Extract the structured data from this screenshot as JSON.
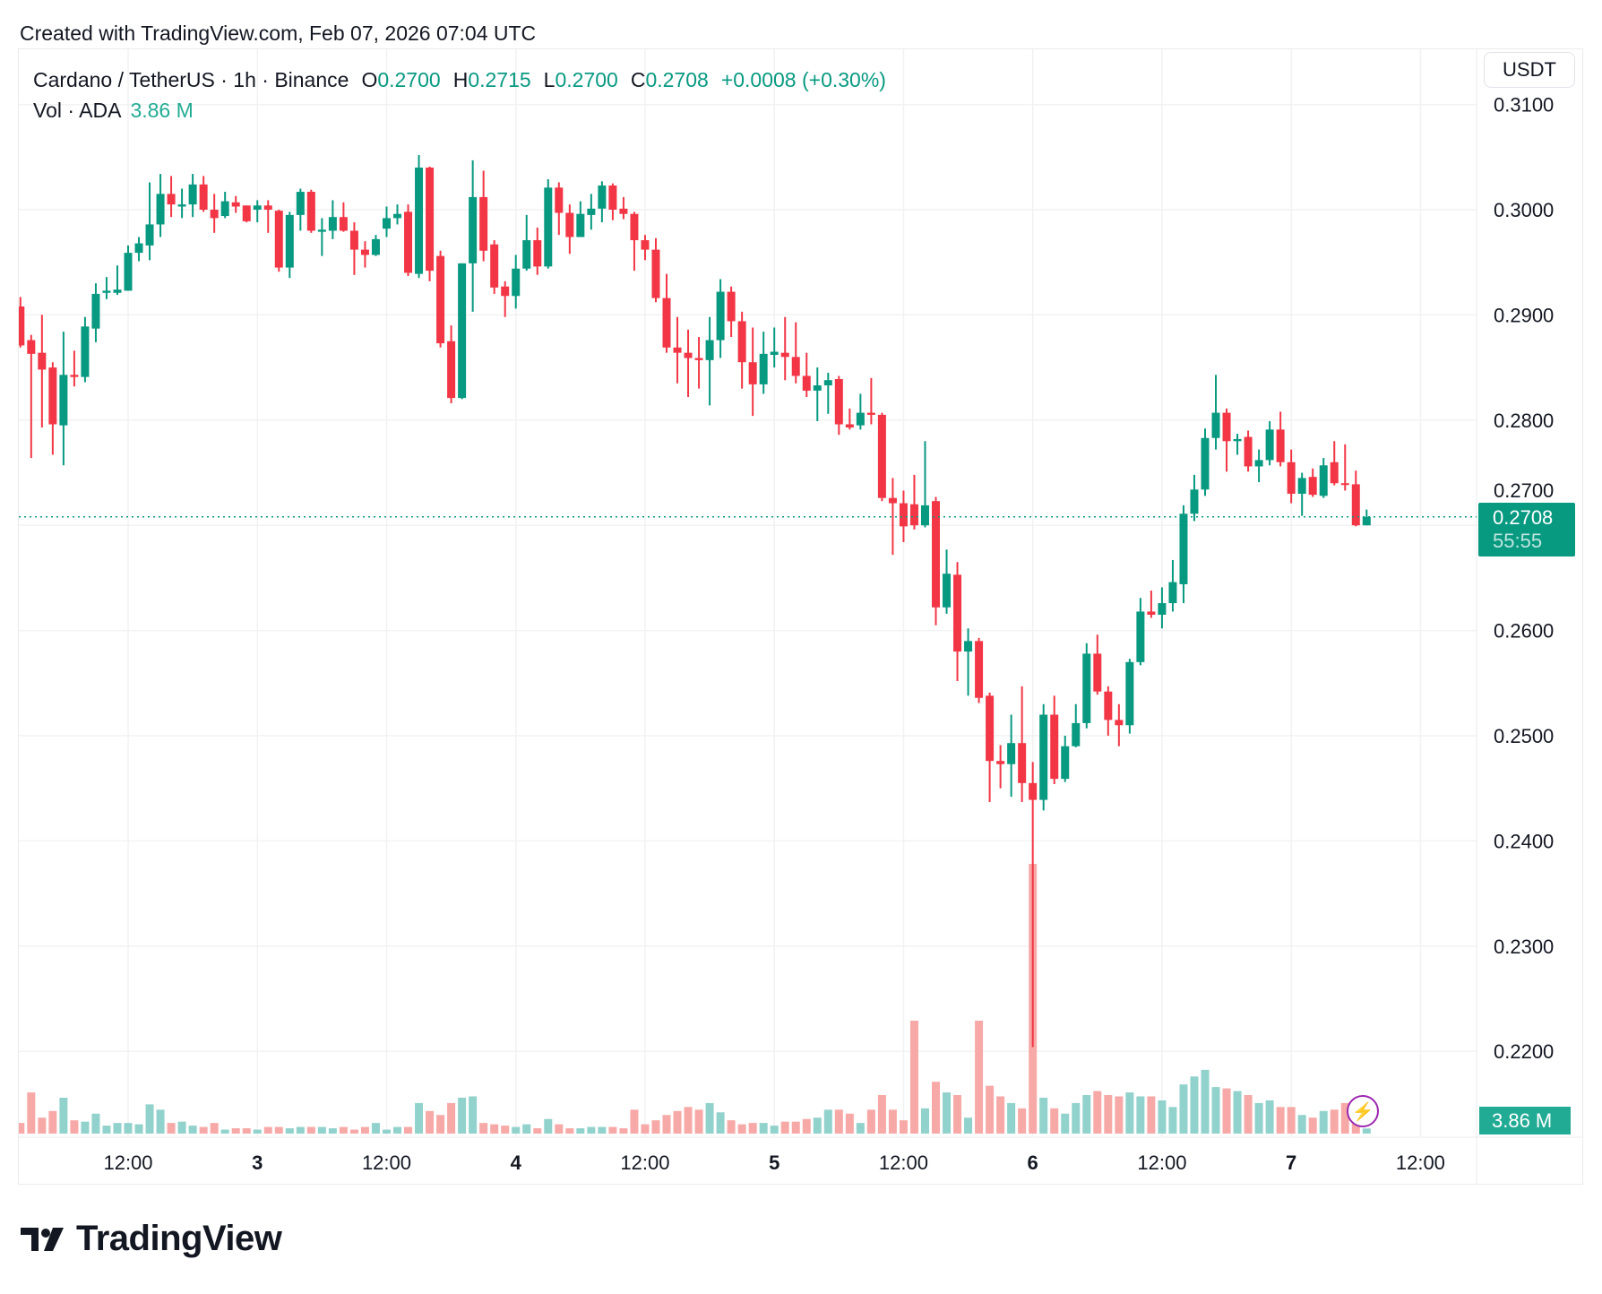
{
  "header": {
    "created": "Created with TradingView.com, Feb 07, 2026 07:04 UTC"
  },
  "legend": {
    "symbol": "Cardano / TetherUS · 1h · Binance",
    "o_label": "O",
    "o": "0.2700",
    "h_label": "H",
    "h": "0.2715",
    "l_label": "L",
    "l": "0.2700",
    "c_label": "C",
    "c": "0.2708",
    "change": "+0.0008 (+0.30%)",
    "vol_label": "Vol · ADA",
    "vol_value": "3.86 M"
  },
  "currency_button": "USDT",
  "last_price": {
    "price": "0.2708",
    "countdown": "55:55"
  },
  "last_volume": "3.86 M",
  "logo_text": "TradingView",
  "colors": {
    "up": "#089981",
    "down": "#F23645",
    "vol_up": "#92d2cc",
    "vol_down": "#f7a9a7",
    "grid": "#f2f2f2"
  },
  "chart_data": {
    "type": "candlestick",
    "title": "Cardano / TetherUS · 1h · Binance",
    "start": "Feb 2 02:00",
    "interval": "1h",
    "ylim": [
      0.213,
      0.3165
    ],
    "y_ticks": [
      "0.2200",
      "0.2300",
      "0.2400",
      "0.2500",
      "0.2600",
      "0.2700",
      "0.2800",
      "0.2900",
      "0.3000",
      "0.3100"
    ],
    "x_ticks": [
      {
        "label": "12:00",
        "hour": 10
      },
      {
        "label": "3",
        "hour": 22
      },
      {
        "label": "12:00",
        "hour": 34
      },
      {
        "label": "4",
        "hour": 46
      },
      {
        "label": "12:00",
        "hour": 58
      },
      {
        "label": "5",
        "hour": 70
      },
      {
        "label": "12:00",
        "hour": 82
      },
      {
        "label": "6",
        "hour": 94
      },
      {
        "label": "12:00",
        "hour": 106
      },
      {
        "label": "7",
        "hour": 118
      },
      {
        "label": "12:00",
        "hour": 130
      }
    ],
    "ohlc_fields": [
      "open",
      "high",
      "low",
      "close"
    ],
    "candles": [
      [
        0.2908,
        0.2917,
        0.2869,
        0.2871
      ],
      [
        0.2876,
        0.2881,
        0.2764,
        0.2863
      ],
      [
        0.2864,
        0.29,
        0.2793,
        0.2848
      ],
      [
        0.285,
        0.2855,
        0.2767,
        0.2796
      ],
      [
        0.2795,
        0.2884,
        0.2757,
        0.2843
      ],
      [
        0.2843,
        0.2866,
        0.2832,
        0.2841
      ],
      [
        0.2841,
        0.2898,
        0.2836,
        0.2889
      ],
      [
        0.2887,
        0.293,
        0.2874,
        0.292
      ],
      [
        0.2921,
        0.2936,
        0.2915,
        0.2923
      ],
      [
        0.2921,
        0.2947,
        0.2919,
        0.2924
      ],
      [
        0.2923,
        0.2966,
        0.2923,
        0.2959
      ],
      [
        0.2959,
        0.2974,
        0.2951,
        0.2968
      ],
      [
        0.2966,
        0.3026,
        0.2952,
        0.2986
      ],
      [
        0.2986,
        0.3034,
        0.2974,
        0.3015
      ],
      [
        0.3015,
        0.3032,
        0.2993,
        0.3005
      ],
      [
        0.3003,
        0.302,
        0.2992,
        0.3005
      ],
      [
        0.3005,
        0.3034,
        0.2993,
        0.3024
      ],
      [
        0.3024,
        0.3032,
        0.2998,
        0.3
      ],
      [
        0.3,
        0.3015,
        0.2978,
        0.2992
      ],
      [
        0.2994,
        0.3017,
        0.2992,
        0.3008
      ],
      [
        0.3007,
        0.3013,
        0.2997,
        0.3003
      ],
      [
        0.3004,
        0.3004,
        0.2988,
        0.2989
      ],
      [
        0.3,
        0.3009,
        0.2988,
        0.3004
      ],
      [
        0.3004,
        0.3009,
        0.2978,
        0.3
      ],
      [
        0.2999,
        0.3,
        0.2941,
        0.2945
      ],
      [
        0.2945,
        0.2998,
        0.2935,
        0.2995
      ],
      [
        0.2995,
        0.302,
        0.298,
        0.3017
      ],
      [
        0.3017,
        0.3019,
        0.2978,
        0.298
      ],
      [
        0.2979,
        0.2992,
        0.2956,
        0.2981
      ],
      [
        0.298,
        0.3009,
        0.2972,
        0.2993
      ],
      [
        0.2993,
        0.3007,
        0.2979,
        0.298
      ],
      [
        0.298,
        0.2988,
        0.2938,
        0.2962
      ],
      [
        0.2962,
        0.297,
        0.2945,
        0.2957
      ],
      [
        0.2957,
        0.2976,
        0.2956,
        0.2972
      ],
      [
        0.2982,
        0.3003,
        0.2974,
        0.2992
      ],
      [
        0.2992,
        0.3005,
        0.2986,
        0.2996
      ],
      [
        0.2998,
        0.3005,
        0.2937,
        0.294
      ],
      [
        0.2939,
        0.3052,
        0.2935,
        0.304
      ],
      [
        0.304,
        0.3041,
        0.2932,
        0.2942
      ],
      [
        0.2956,
        0.2961,
        0.2869,
        0.2873
      ],
      [
        0.2875,
        0.289,
        0.2816,
        0.2821
      ],
      [
        0.2821,
        0.2949,
        0.282,
        0.2949
      ],
      [
        0.2949,
        0.3047,
        0.2903,
        0.3012
      ],
      [
        0.3012,
        0.3037,
        0.2951,
        0.2961
      ],
      [
        0.2967,
        0.2971,
        0.292,
        0.2926
      ],
      [
        0.2927,
        0.2932,
        0.2898,
        0.2918
      ],
      [
        0.2918,
        0.2957,
        0.2906,
        0.2944
      ],
      [
        0.2944,
        0.2995,
        0.2942,
        0.2971
      ],
      [
        0.2971,
        0.2983,
        0.2938,
        0.2946
      ],
      [
        0.2946,
        0.3029,
        0.2944,
        0.3021
      ],
      [
        0.3021,
        0.3026,
        0.2976,
        0.2997
      ],
      [
        0.2997,
        0.3005,
        0.2958,
        0.2974
      ],
      [
        0.2974,
        0.3008,
        0.2974,
        0.2996
      ],
      [
        0.2995,
        0.3015,
        0.2981,
        0.3001
      ],
      [
        0.3001,
        0.3027,
        0.2988,
        0.3023
      ],
      [
        0.3023,
        0.3025,
        0.299,
        0.3
      ],
      [
        0.3001,
        0.3012,
        0.2991,
        0.2996
      ],
      [
        0.2996,
        0.2998,
        0.2942,
        0.2971
      ],
      [
        0.2971,
        0.2976,
        0.2952,
        0.2962
      ],
      [
        0.2962,
        0.2973,
        0.2912,
        0.2916
      ],
      [
        0.2916,
        0.2939,
        0.2864,
        0.2869
      ],
      [
        0.2869,
        0.2898,
        0.2835,
        0.2864
      ],
      [
        0.2864,
        0.2886,
        0.2822,
        0.2859
      ],
      [
        0.2859,
        0.2879,
        0.283,
        0.2857
      ],
      [
        0.2857,
        0.2898,
        0.2814,
        0.2876
      ],
      [
        0.2876,
        0.2934,
        0.2859,
        0.2922
      ],
      [
        0.2922,
        0.2927,
        0.2879,
        0.2894
      ],
      [
        0.2894,
        0.2903,
        0.283,
        0.2855
      ],
      [
        0.2855,
        0.2888,
        0.2804,
        0.2834
      ],
      [
        0.2834,
        0.2884,
        0.2825,
        0.2863
      ],
      [
        0.2862,
        0.2888,
        0.285,
        0.2865
      ],
      [
        0.2864,
        0.2898,
        0.2838,
        0.286
      ],
      [
        0.286,
        0.2893,
        0.2835,
        0.2842
      ],
      [
        0.2842,
        0.2864,
        0.2822,
        0.2828
      ],
      [
        0.2828,
        0.285,
        0.2799,
        0.2833
      ],
      [
        0.2833,
        0.2845,
        0.2806,
        0.2838
      ],
      [
        0.2839,
        0.2842,
        0.2786,
        0.2796
      ],
      [
        0.2796,
        0.2811,
        0.2791,
        0.2793
      ],
      [
        0.2795,
        0.2825,
        0.2791,
        0.2807
      ],
      [
        0.2807,
        0.284,
        0.2796,
        0.2805
      ],
      [
        0.2805,
        0.2807,
        0.2723,
        0.2726
      ],
      [
        0.2726,
        0.2745,
        0.2672,
        0.2721
      ],
      [
        0.2721,
        0.2733,
        0.2684,
        0.2699
      ],
      [
        0.272,
        0.2748,
        0.2696,
        0.27
      ],
      [
        0.27,
        0.278,
        0.2698,
        0.2719
      ],
      [
        0.2723,
        0.2727,
        0.2605,
        0.2622
      ],
      [
        0.2622,
        0.2677,
        0.2616,
        0.2654
      ],
      [
        0.2653,
        0.2665,
        0.2552,
        0.258
      ],
      [
        0.258,
        0.2602,
        0.2538,
        0.259
      ],
      [
        0.259,
        0.2593,
        0.2531,
        0.2536
      ],
      [
        0.2538,
        0.2541,
        0.2437,
        0.2476
      ],
      [
        0.2476,
        0.2491,
        0.245,
        0.2473
      ],
      [
        0.2473,
        0.252,
        0.2442,
        0.2493
      ],
      [
        0.2493,
        0.2547,
        0.2437,
        0.2455
      ],
      [
        0.2455,
        0.2475,
        0.2204,
        0.2439
      ],
      [
        0.2439,
        0.253,
        0.2429,
        0.252
      ],
      [
        0.252,
        0.2538,
        0.2454,
        0.2459
      ],
      [
        0.2459,
        0.25,
        0.2456,
        0.249
      ],
      [
        0.249,
        0.253,
        0.2489,
        0.2512
      ],
      [
        0.2512,
        0.2588,
        0.2507,
        0.2578
      ],
      [
        0.2578,
        0.2596,
        0.2539,
        0.2542
      ],
      [
        0.2542,
        0.2547,
        0.25,
        0.2515
      ],
      [
        0.2515,
        0.253,
        0.249,
        0.251
      ],
      [
        0.251,
        0.2573,
        0.2502,
        0.257
      ],
      [
        0.257,
        0.2631,
        0.2567,
        0.2618
      ],
      [
        0.2618,
        0.2638,
        0.2612,
        0.2615
      ],
      [
        0.2615,
        0.2641,
        0.2602,
        0.2626
      ],
      [
        0.2626,
        0.2667,
        0.2618,
        0.2646
      ],
      [
        0.2644,
        0.2719,
        0.2626,
        0.2711
      ],
      [
        0.2711,
        0.2748,
        0.2704,
        0.2734
      ],
      [
        0.2734,
        0.2792,
        0.2728,
        0.2783
      ],
      [
        0.2783,
        0.2843,
        0.2772,
        0.2807
      ],
      [
        0.2807,
        0.2811,
        0.2751,
        0.278
      ],
      [
        0.278,
        0.2787,
        0.2767,
        0.2782
      ],
      [
        0.2784,
        0.279,
        0.2751,
        0.2756
      ],
      [
        0.2756,
        0.2772,
        0.2741,
        0.2762
      ],
      [
        0.2762,
        0.2799,
        0.2757,
        0.2791
      ],
      [
        0.2791,
        0.2808,
        0.2756,
        0.276
      ],
      [
        0.276,
        0.2772,
        0.2721,
        0.273
      ],
      [
        0.273,
        0.275,
        0.2709,
        0.2745
      ],
      [
        0.2746,
        0.2754,
        0.2727,
        0.2729
      ],
      [
        0.2728,
        0.2764,
        0.2726,
        0.2757
      ],
      [
        0.276,
        0.278,
        0.2738,
        0.274
      ],
      [
        0.274,
        0.2777,
        0.2733,
        0.2739
      ],
      [
        0.2739,
        0.2752,
        0.2699,
        0.27
      ],
      [
        0.27,
        0.2715,
        0.27,
        0.2708
      ]
    ],
    "volume_unit": "M",
    "volume_max": 210,
    "volumes": [
      8,
      31,
      12,
      17,
      27,
      10,
      9,
      15,
      6,
      8,
      8,
      7,
      22,
      18,
      8,
      9,
      6,
      5,
      8,
      3,
      4,
      4,
      3,
      5,
      5,
      4,
      5,
      5,
      5,
      4,
      5,
      3,
      5,
      8,
      3,
      5,
      5,
      23,
      17,
      14,
      23,
      27,
      28,
      8,
      7,
      6,
      5,
      7,
      4,
      11,
      7,
      4,
      4,
      5,
      5,
      5,
      4,
      18,
      7,
      10,
      14,
      17,
      20,
      18,
      23,
      16,
      10,
      7,
      8,
      8,
      6,
      9,
      9,
      11,
      12,
      18,
      18,
      15,
      8,
      18,
      29,
      18,
      10,
      85,
      19,
      39,
      31,
      29,
      12,
      85,
      36,
      28,
      23,
      19,
      203,
      27,
      19,
      15,
      23,
      29,
      32,
      29,
      28,
      31,
      28,
      28,
      25,
      20,
      37,
      43,
      48,
      35,
      34,
      32,
      29,
      23,
      25,
      20,
      20,
      14,
      12,
      17,
      18,
      23,
      22,
      3.86
    ],
    "last_price_line": 0.2708
  }
}
